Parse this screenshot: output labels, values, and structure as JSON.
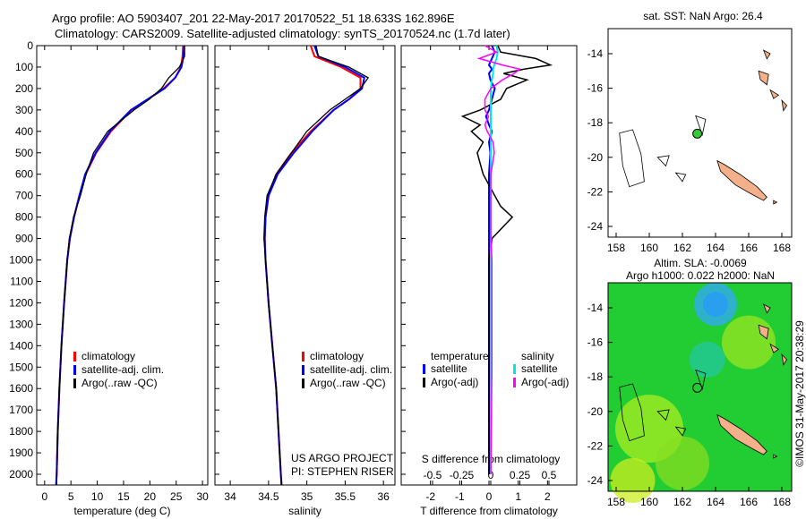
{
  "title": {
    "line1": "Argo profile: AO 5903407_201 22-May-2017 20170522_51 18.633S 162.896E",
    "line2": "Climatology: CARS2009. Satellite-adjusted climatology: synTS_20170524.nc (1.7d later)"
  },
  "credit": "©IMOS 31-May-2017 20:38:29",
  "project": {
    "line1": "US ARGO PROJECT",
    "line2": "PI: STEPHEN RISER"
  },
  "colors": {
    "climatology": "#ff0000",
    "satellite": "#0000ff",
    "argo": "#000000",
    "sal_satellite": "#00e5ee",
    "sal_argo": "#ff00ff",
    "land": "#f4b08a"
  },
  "chart_data": [
    {
      "type": "line",
      "name": "temperature",
      "xlabel": "temperature (deg C)",
      "xlim": [
        -1.5,
        31
      ],
      "xticks": [
        0,
        5,
        10,
        15,
        20,
        25,
        30
      ],
      "ylim": [
        2050,
        0
      ],
      "yticks": [
        0,
        100,
        200,
        300,
        400,
        500,
        600,
        700,
        800,
        900,
        1000,
        1100,
        1200,
        1300,
        1400,
        1500,
        1600,
        1700,
        1800,
        1900,
        2000
      ],
      "legend": [
        "climatology",
        "satellite-adj. clim.",
        "Argo(..raw -QC)"
      ],
      "depth": [
        0,
        50,
        100,
        150,
        200,
        250,
        300,
        400,
        500,
        600,
        700,
        800,
        900,
        1000,
        1200,
        1400,
        1600,
        1800,
        2000,
        2050
      ],
      "series": [
        {
          "name": "climatology",
          "values": [
            26.3,
            26.2,
            25.9,
            24.8,
            22.6,
            19.6,
            16.5,
            12.6,
            9.8,
            7.8,
            6.6,
            5.6,
            4.8,
            4.3,
            3.7,
            3.2,
            2.8,
            2.5,
            2.3,
            2.2
          ]
        },
        {
          "name": "satellite-adj. clim.",
          "values": [
            26.5,
            26.4,
            26.0,
            24.8,
            22.8,
            19.6,
            16.4,
            12.4,
            9.7,
            7.7,
            6.6,
            5.6,
            4.8,
            4.3,
            3.7,
            3.2,
            2.8,
            2.5,
            2.3,
            2.2
          ]
        },
        {
          "name": "Argo",
          "values": [
            26.6,
            26.6,
            25.6,
            23.6,
            22.2,
            19.9,
            17.0,
            12.0,
            9.3,
            7.9,
            6.8,
            5.5,
            4.7,
            4.3,
            3.7,
            3.2,
            2.8,
            2.5,
            2.3,
            2.3
          ]
        }
      ]
    },
    {
      "type": "line",
      "name": "salinity",
      "xlabel": "salinity",
      "xlim": [
        33.8,
        36.15
      ],
      "xticks": [
        34,
        34.5,
        35,
        35.5,
        36
      ],
      "legend": [
        "climatology",
        "satellite-adj. clim.",
        "Argo(..raw -QC)"
      ],
      "depth": [
        0,
        50,
        100,
        150,
        200,
        250,
        300,
        400,
        500,
        600,
        700,
        800,
        900,
        1000,
        1200,
        1400,
        1600,
        1800,
        2000,
        2050
      ],
      "series": [
        {
          "name": "climatology",
          "values": [
            35.05,
            35.1,
            35.45,
            35.7,
            35.7,
            35.55,
            35.35,
            35.05,
            34.8,
            34.6,
            34.5,
            34.46,
            34.45,
            34.46,
            34.5,
            34.55,
            34.6,
            34.63,
            34.66,
            34.67
          ]
        },
        {
          "name": "satellite-adj. clim.",
          "values": [
            35.1,
            35.15,
            35.5,
            35.75,
            35.72,
            35.55,
            35.35,
            35.07,
            34.83,
            34.62,
            34.5,
            34.46,
            34.45,
            34.46,
            34.5,
            34.55,
            34.6,
            34.63,
            34.66,
            34.67
          ]
        },
        {
          "name": "Argo",
          "values": [
            35.12,
            35.15,
            35.55,
            35.8,
            35.7,
            35.5,
            35.3,
            35.0,
            34.8,
            34.6,
            34.48,
            34.45,
            34.44,
            34.46,
            34.5,
            34.55,
            34.6,
            34.63,
            34.66,
            34.67
          ]
        }
      ]
    },
    {
      "type": "line",
      "name": "difference",
      "xlabel": "T difference from climatology",
      "x2label": "S difference from climatology",
      "xlim": [
        -3,
        3
      ],
      "xticks": [
        -2,
        -1,
        0,
        1,
        2
      ],
      "x2ticks": [
        -0.5,
        -0.25,
        0,
        0.25,
        0.5
      ],
      "legend_title_t": "temperature",
      "legend_title_s": "salinity",
      "legend": [
        "satellite",
        "Argo(-adj)",
        "satellite",
        "Argo(-adj)"
      ],
      "depth": [
        0,
        30,
        60,
        90,
        110,
        130,
        160,
        200,
        250,
        300,
        330,
        370,
        400,
        450,
        500,
        600,
        700,
        750,
        800,
        900,
        1000,
        1200,
        1500,
        2000
      ],
      "series": [
        {
          "name": "T satellite",
          "values": [
            0.1,
            0.2,
            0.1,
            0,
            0.1,
            0,
            0.05,
            0.2,
            0.1,
            0,
            -0.1,
            0,
            0.1,
            0,
            0.05,
            0,
            0,
            0,
            0,
            0,
            0,
            0,
            0,
            0
          ]
        },
        {
          "name": "T Argo",
          "values": [
            0.3,
            0.4,
            1.6,
            2.1,
            1.2,
            0.5,
            1.3,
            0.6,
            0.4,
            -0.3,
            -0.9,
            -0.3,
            -0.6,
            -0.2,
            -0.4,
            -0.2,
            0.2,
            0.4,
            0.8,
            0.1,
            0,
            0,
            0,
            0
          ]
        },
        {
          "name": "S satellite",
          "values": [
            0.05,
            0.06,
            0.05,
            0.03,
            0.02,
            0.02,
            0.01,
            0,
            0,
            0,
            0,
            0,
            0,
            0,
            0,
            0,
            0,
            0,
            0,
            0,
            0,
            0,
            0,
            0
          ]
        },
        {
          "name": "S Argo",
          "values": [
            -0.05,
            0.05,
            -0.1,
            0.1,
            0.25,
            0.2,
            0.1,
            0.0,
            -0.05,
            -0.05,
            -0.02,
            -0.05,
            -0.03,
            0.02,
            0.03,
            0,
            0,
            0,
            0,
            0,
            0.01,
            0.01,
            0.01,
            0
          ]
        }
      ]
    },
    {
      "type": "map",
      "name": "sst",
      "title": "sat. SST: NaN Argo: 26.4",
      "xlim": [
        157.5,
        168.3
      ],
      "ylim": [
        -24.7,
        -12.6
      ],
      "xticks": [
        158,
        160,
        162,
        164,
        166,
        168
      ],
      "yticks": [
        -14,
        -16,
        -18,
        -20,
        -22,
        -24
      ],
      "argo_point": [
        162.9,
        -18.63
      ]
    },
    {
      "type": "map",
      "name": "sla",
      "title": "Altim. SLA: -0.0069",
      "subtitle": "Argo h1000: 0.022 h2000: NaN",
      "xlim": [
        157.5,
        168.3
      ],
      "ylim": [
        -24.7,
        -12.6
      ],
      "xticks": [
        158,
        160,
        162,
        164,
        166,
        168
      ],
      "yticks": [
        -14,
        -16,
        -18,
        -20,
        -22,
        -24
      ],
      "argo_point": [
        162.9,
        -18.63
      ]
    }
  ]
}
